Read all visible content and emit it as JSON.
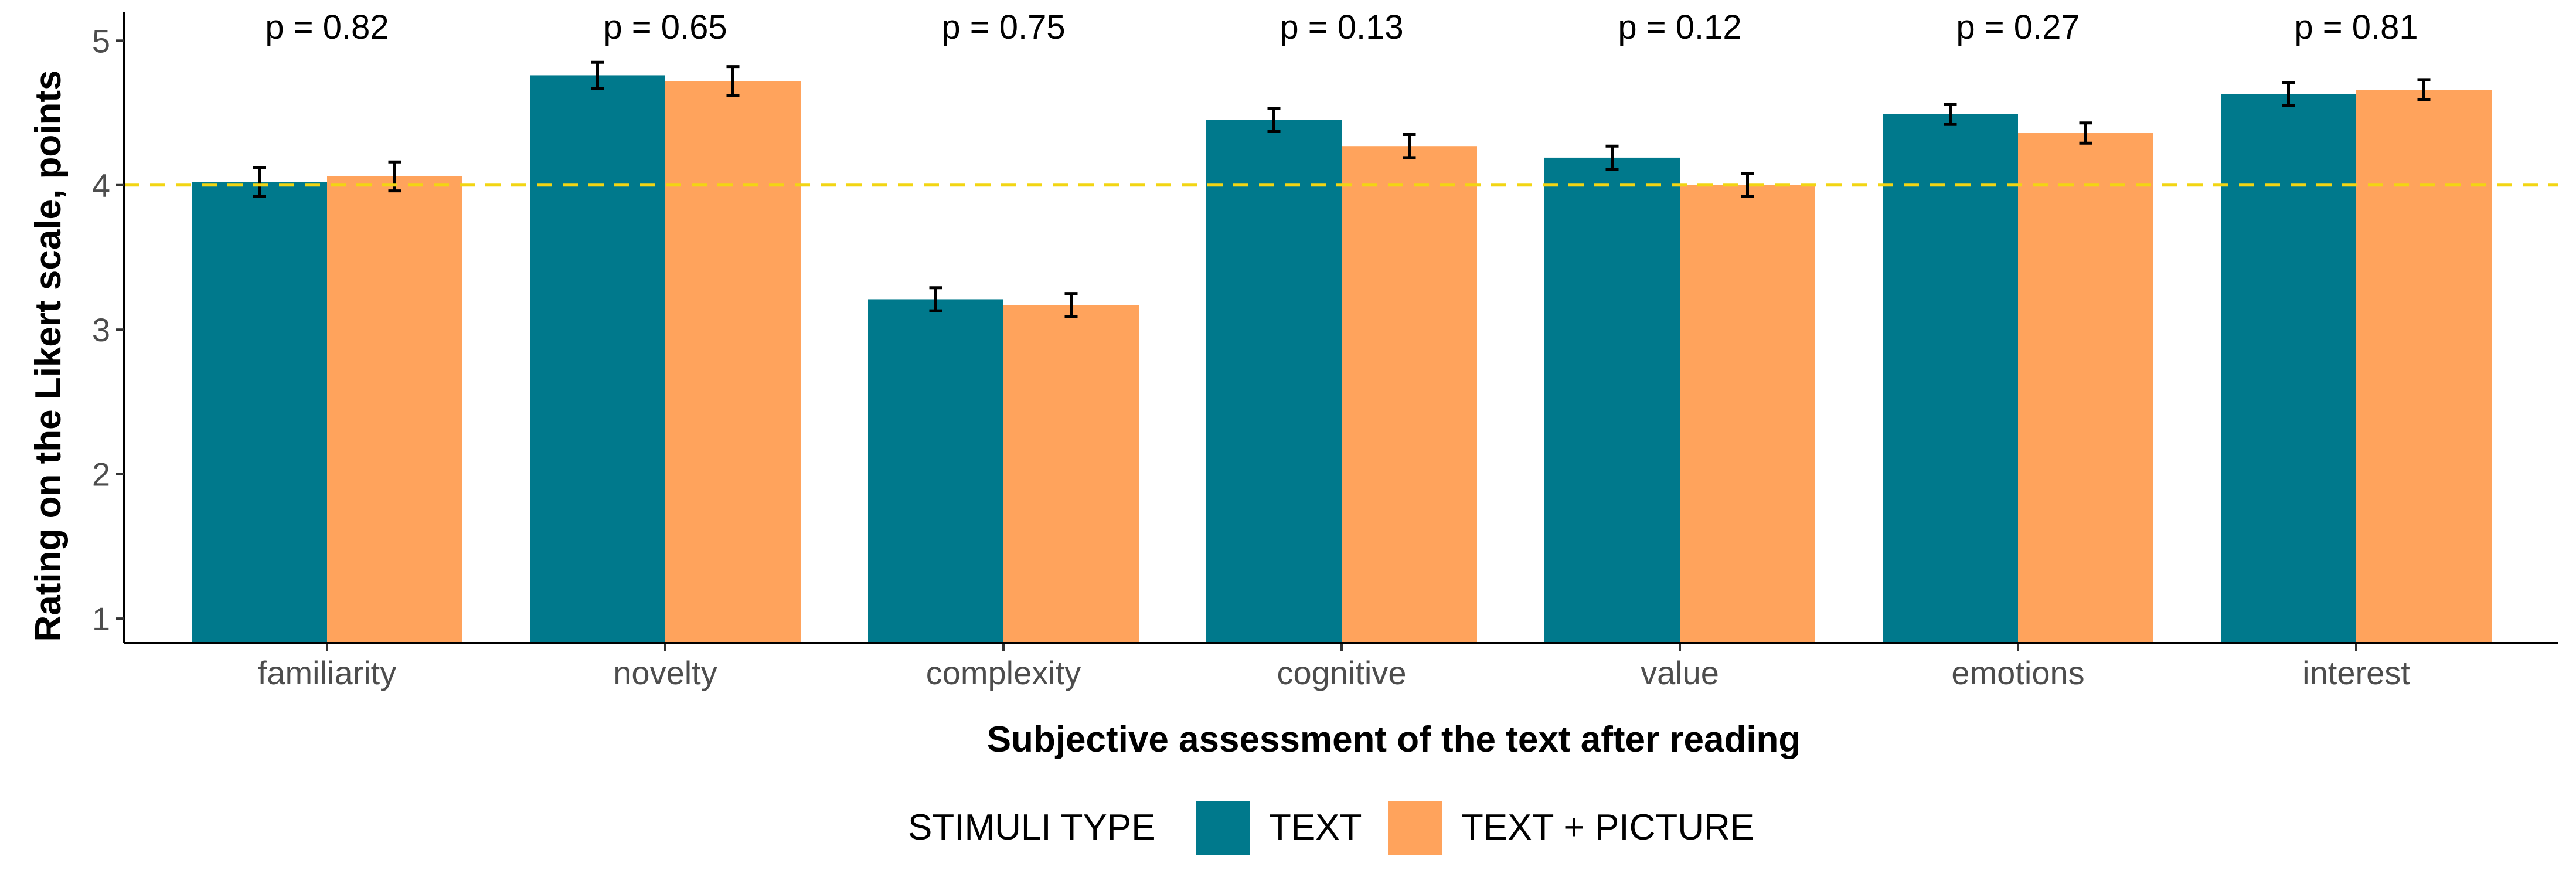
{
  "chart_data": {
    "type": "bar",
    "title": "",
    "xlabel": "Subjective assessment of the text after reading",
    "ylabel": "Rating on the Likert scale, points",
    "ylim": [
      0.83,
      5.2
    ],
    "yticks": [
      1,
      2,
      3,
      4,
      5
    ],
    "reference_line": {
      "y": 4,
      "style": "dashed",
      "color": "#f2d513"
    },
    "categories": [
      "familiarity",
      "novelty",
      "complexity",
      "cognitive",
      "value",
      "emotions",
      "interest"
    ],
    "p_values": [
      "p = 0.82",
      "p = 0.65",
      "p = 0.75",
      "p = 0.13",
      "p = 0.12",
      "p = 0.27",
      "p = 0.81"
    ],
    "series": [
      {
        "name": "TEXT",
        "color": "#00798c",
        "values": [
          4.02,
          4.76,
          3.21,
          4.45,
          4.19,
          4.49,
          4.63
        ],
        "errors": [
          0.1,
          0.09,
          0.08,
          0.08,
          0.08,
          0.07,
          0.08
        ]
      },
      {
        "name": "TEXT + PICTURE",
        "color": "#ffa35c",
        "values": [
          4.06,
          4.72,
          3.17,
          4.27,
          4.0,
          4.36,
          4.66
        ],
        "errors": [
          0.1,
          0.1,
          0.08,
          0.08,
          0.08,
          0.07,
          0.07
        ]
      }
    ],
    "legend": {
      "title": "STIMULI TYPE",
      "position": "bottom"
    },
    "grid": false
  }
}
